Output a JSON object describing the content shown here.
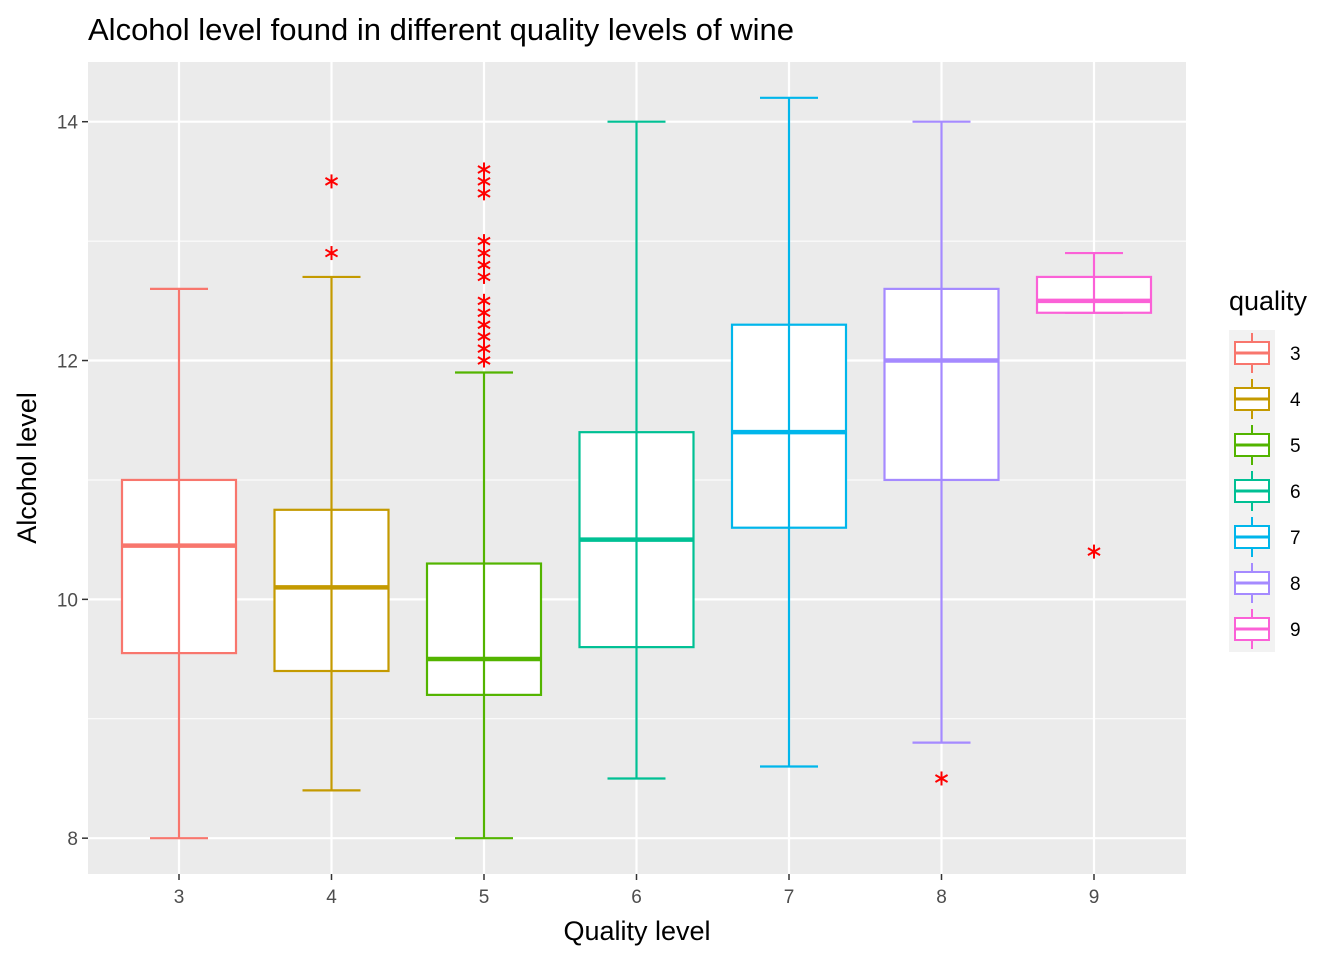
{
  "chart_data": {
    "type": "boxplot",
    "title": "Alcohol level found in different quality levels of wine",
    "xlabel": "Quality level",
    "ylabel": "Alcohol level",
    "categories": [
      "3",
      "4",
      "5",
      "6",
      "7",
      "8",
      "9"
    ],
    "y_ticks": [
      8,
      10,
      12,
      14
    ],
    "ylim": [
      7.7,
      14.5
    ],
    "grid": true,
    "legend": {
      "title": "quality",
      "position": "right",
      "entries": [
        "3",
        "4",
        "5",
        "6",
        "7",
        "8",
        "9"
      ]
    },
    "outlier_color": "#ff0000",
    "series": [
      {
        "category": "3",
        "color": "#f8766d",
        "min": 8.0,
        "q1": 9.55,
        "median": 10.45,
        "q3": 11.0,
        "max": 12.6,
        "outliers": []
      },
      {
        "category": "4",
        "color": "#c49a00",
        "min": 8.4,
        "q1": 9.4,
        "median": 10.1,
        "q3": 10.75,
        "max": 12.7,
        "outliers": [
          12.9,
          13.5
        ]
      },
      {
        "category": "5",
        "color": "#53b400",
        "min": 8.0,
        "q1": 9.2,
        "median": 9.5,
        "q3": 10.3,
        "max": 11.9,
        "outliers": [
          12.0,
          12.1,
          12.2,
          12.3,
          12.4,
          12.5,
          12.7,
          12.8,
          12.9,
          13.0,
          13.4,
          13.5,
          13.6
        ]
      },
      {
        "category": "6",
        "color": "#00c094",
        "min": 8.5,
        "q1": 9.6,
        "median": 10.5,
        "q3": 11.4,
        "max": 14.0,
        "outliers": []
      },
      {
        "category": "7",
        "color": "#00b6eb",
        "min": 8.6,
        "q1": 10.6,
        "median": 11.4,
        "q3": 12.3,
        "max": 14.2,
        "outliers": []
      },
      {
        "category": "8",
        "color": "#a58aff",
        "min": 8.8,
        "q1": 11.0,
        "median": 12.0,
        "q3": 12.6,
        "max": 14.0,
        "outliers": [
          8.5
        ]
      },
      {
        "category": "9",
        "color": "#fb61d7",
        "min": 12.4,
        "q1": 12.4,
        "median": 12.5,
        "q3": 12.7,
        "max": 12.9,
        "outliers": [
          10.4
        ]
      }
    ]
  }
}
